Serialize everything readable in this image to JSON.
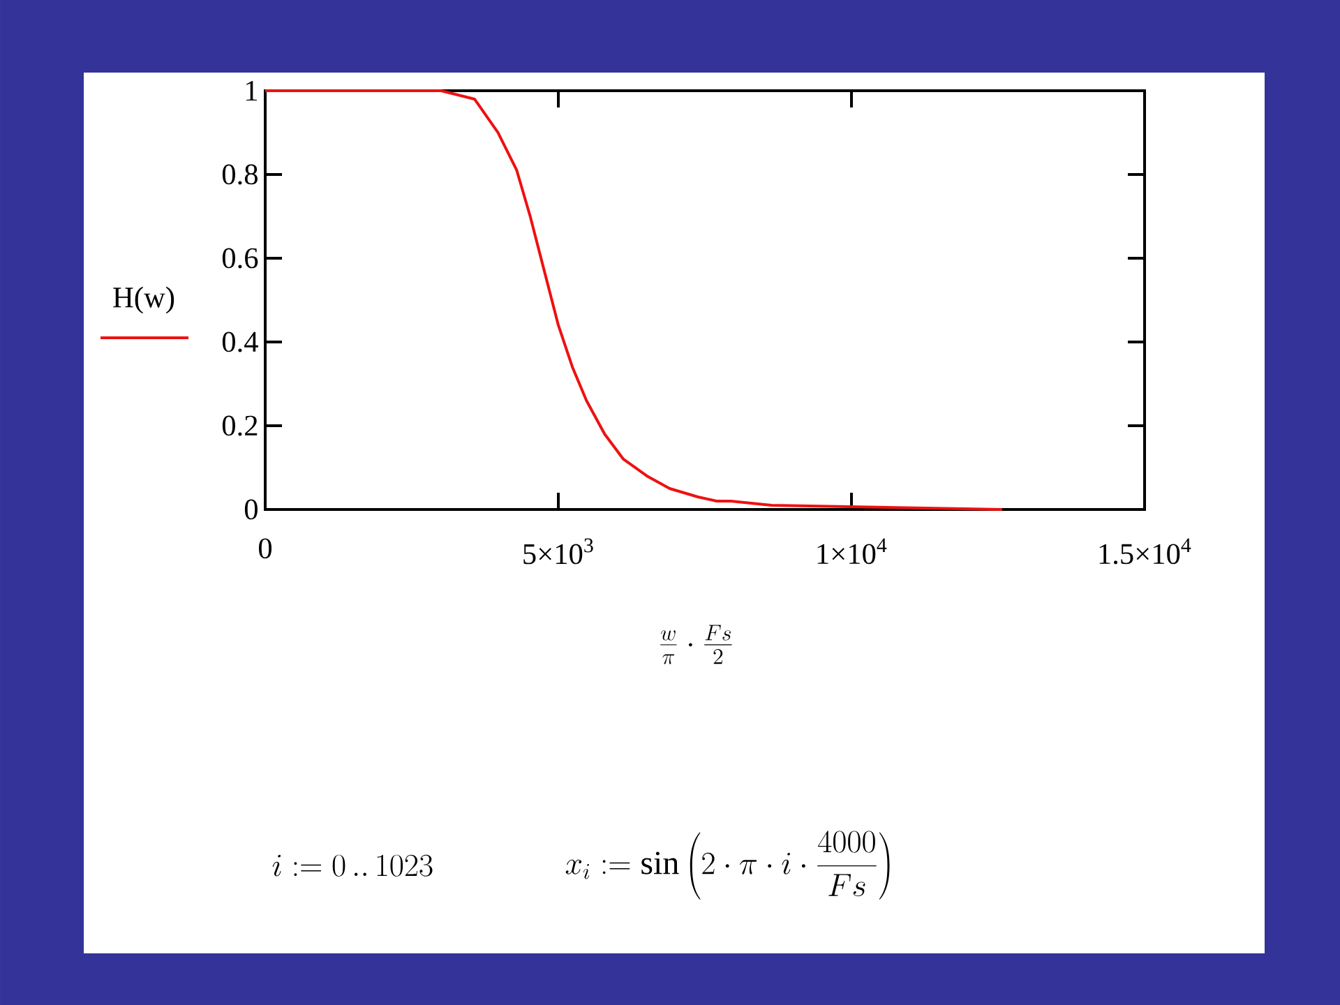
{
  "chart_data": {
    "type": "line",
    "xlabel": "\\frac{w}{\\pi}\\cdot\\frac{Fs}{2}",
    "x": [
      0,
      3000,
      3570,
      3970,
      4290,
      4520,
      4760,
      5000,
      5240,
      5480,
      5790,
      6110,
      6510,
      6900,
      7380,
      7700,
      7940,
      8640,
      12570
    ],
    "series": [
      {
        "name": "H(w)",
        "color": "#ee1111",
        "values": [
          1,
          1,
          0.98,
          0.9,
          0.81,
          0.7,
          0.57,
          0.44,
          0.34,
          0.26,
          0.18,
          0.12,
          0.08,
          0.05,
          0.03,
          0.02,
          0.02,
          0.01,
          0
        ]
      }
    ],
    "xlim": [
      0,
      15000
    ],
    "ylim": [
      0,
      1
    ],
    "xticks": [
      0,
      {
        "value": 5000,
        "label": "5×10$^{3}$"
      },
      {
        "value": 10000,
        "label": "1×10$^{4}$"
      },
      {
        "value": 15000,
        "label": "1.5×10$^{4}$"
      }
    ],
    "yticks": [
      0,
      0.2,
      0.4,
      0.6,
      0.8,
      1
    ],
    "grid": false,
    "legend": "left",
    "marker": "none",
    "line_style": "solid",
    "annotations": [
      "i := 0\\,..\\,1023",
      "x_{i} := \\sin\\left(2\\cdot\\pi\\cdot i\\cdot\\frac{4000}{Fs}\\right)"
    ]
  }
}
